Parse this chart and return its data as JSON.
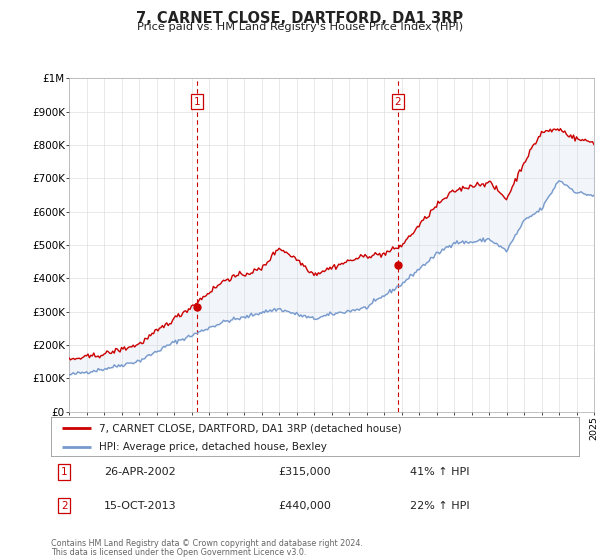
{
  "title": "7, CARNET CLOSE, DARTFORD, DA1 3RP",
  "subtitle": "Price paid vs. HM Land Registry's House Price Index (HPI)",
  "xlim": [
    1995,
    2025
  ],
  "ylim": [
    0,
    1000000
  ],
  "yticks": [
    0,
    100000,
    200000,
    300000,
    400000,
    500000,
    600000,
    700000,
    800000,
    900000,
    1000000
  ],
  "ytick_labels": [
    "£0",
    "£100K",
    "£200K",
    "£300K",
    "£400K",
    "£500K",
    "£600K",
    "£700K",
    "£800K",
    "£900K",
    "£1M"
  ],
  "marker1_x": 2002.32,
  "marker1_y": 315000,
  "marker2_x": 2013.79,
  "marker2_y": 440000,
  "marker1_label": "1",
  "marker2_label": "2",
  "sale1_date": "26-APR-2002",
  "sale1_price": "£315,000",
  "sale1_hpi": "41% ↑ HPI",
  "sale2_date": "15-OCT-2013",
  "sale2_price": "£440,000",
  "sale2_hpi": "22% ↑ HPI",
  "legend_line1": "7, CARNET CLOSE, DARTFORD, DA1 3RP (detached house)",
  "legend_line2": "HPI: Average price, detached house, Bexley",
  "line1_color": "#cc0000",
  "line2_color": "#7799cc",
  "marker_color": "#cc0000",
  "vline_color": "#cc0000",
  "bg_color": "#ffffff",
  "plot_bg": "#ffffff",
  "fill_color": "#ccddf0",
  "footer1": "Contains HM Land Registry data © Crown copyright and database right 2024.",
  "footer2": "This data is licensed under the Open Government Licence v3.0."
}
